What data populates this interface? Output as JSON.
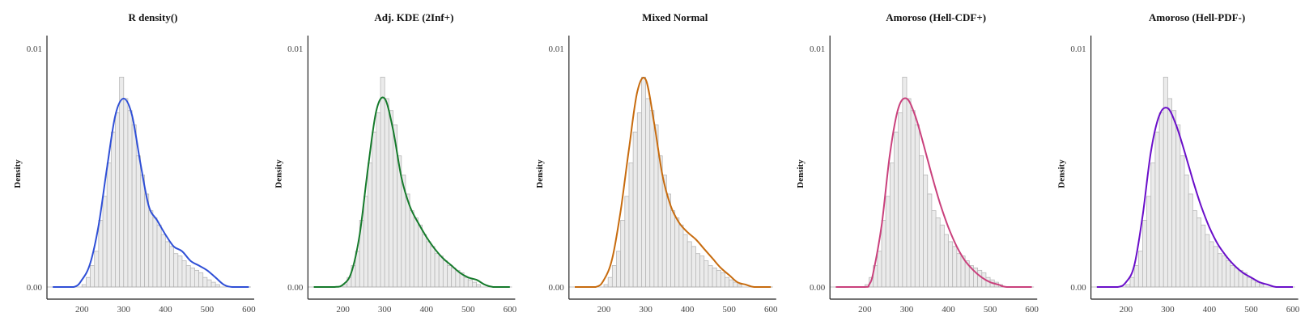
{
  "chart_data": [
    {
      "type": "bar",
      "title": "R density()",
      "ylabel": "Density",
      "xlabel": "",
      "ylim": [
        0,
        0.0105
      ],
      "xlim": [
        120,
        605
      ],
      "x_ticks": [
        "200",
        "300",
        "400",
        "500",
        "600"
      ],
      "y_ticks": [
        "0.00",
        "0.01"
      ],
      "curve_color": "#2f4fd6",
      "bins": [
        [
          200,
          210,
          0.0001
        ],
        [
          210,
          220,
          0.0004
        ],
        [
          220,
          230,
          0.0009
        ],
        [
          230,
          240,
          0.0015
        ],
        [
          240,
          250,
          0.0028
        ],
        [
          250,
          260,
          0.0038
        ],
        [
          260,
          270,
          0.0052
        ],
        [
          270,
          280,
          0.0065
        ],
        [
          280,
          290,
          0.0073
        ],
        [
          290,
          300,
          0.0088
        ],
        [
          300,
          310,
          0.0079
        ],
        [
          310,
          320,
          0.0074
        ],
        [
          320,
          330,
          0.0068
        ],
        [
          330,
          340,
          0.0055
        ],
        [
          340,
          350,
          0.0047
        ],
        [
          350,
          360,
          0.0039
        ],
        [
          360,
          370,
          0.0032
        ],
        [
          370,
          380,
          0.0029
        ],
        [
          380,
          390,
          0.0026
        ],
        [
          390,
          400,
          0.0022
        ],
        [
          400,
          410,
          0.0019
        ],
        [
          410,
          420,
          0.0017
        ],
        [
          420,
          430,
          0.0014
        ],
        [
          430,
          440,
          0.0013
        ],
        [
          440,
          450,
          0.0011
        ],
        [
          450,
          460,
          0.0009
        ],
        [
          460,
          470,
          0.0008
        ],
        [
          470,
          480,
          0.0007
        ],
        [
          480,
          490,
          0.0006
        ],
        [
          490,
          500,
          0.0004
        ],
        [
          500,
          510,
          0.0003
        ],
        [
          510,
          520,
          0.0002
        ],
        [
          520,
          530,
          0.0001
        ]
      ],
      "curve": [
        [
          130,
          0
        ],
        [
          180,
          0
        ],
        [
          200,
          0.0003
        ],
        [
          220,
          0.001
        ],
        [
          240,
          0.0026
        ],
        [
          260,
          0.005
        ],
        [
          280,
          0.0072
        ],
        [
          300,
          0.0079
        ],
        [
          320,
          0.0072
        ],
        [
          340,
          0.0052
        ],
        [
          360,
          0.0034
        ],
        [
          380,
          0.0028
        ],
        [
          400,
          0.0022
        ],
        [
          420,
          0.0017
        ],
        [
          440,
          0.0015
        ],
        [
          460,
          0.0011
        ],
        [
          480,
          0.0009
        ],
        [
          500,
          0.0007
        ],
        [
          520,
          0.0004
        ],
        [
          540,
          0.0001
        ],
        [
          560,
          0
        ],
        [
          600,
          0
        ]
      ]
    },
    {
      "type": "bar",
      "title": "Adj. KDE (2Inf+)",
      "ylabel": "Density",
      "xlabel": "",
      "ylim": [
        0,
        0.0105
      ],
      "xlim": [
        120,
        605
      ],
      "x_ticks": [
        "200",
        "300",
        "400",
        "500",
        "600"
      ],
      "y_ticks": [
        "0.00",
        "0.01"
      ],
      "curve_color": "#157a2b",
      "bins": [
        [
          200,
          210,
          0.0001
        ],
        [
          210,
          220,
          0.0004
        ],
        [
          220,
          230,
          0.0009
        ],
        [
          230,
          240,
          0.0015
        ],
        [
          240,
          250,
          0.0028
        ],
        [
          250,
          260,
          0.0038
        ],
        [
          260,
          270,
          0.0052
        ],
        [
          270,
          280,
          0.0065
        ],
        [
          280,
          290,
          0.0073
        ],
        [
          290,
          300,
          0.0088
        ],
        [
          300,
          310,
          0.0079
        ],
        [
          310,
          320,
          0.0074
        ],
        [
          320,
          330,
          0.0068
        ],
        [
          330,
          340,
          0.0055
        ],
        [
          340,
          350,
          0.0047
        ],
        [
          350,
          360,
          0.0039
        ],
        [
          360,
          370,
          0.0032
        ],
        [
          370,
          380,
          0.0029
        ],
        [
          380,
          390,
          0.0026
        ],
        [
          390,
          400,
          0.0022
        ],
        [
          400,
          410,
          0.0019
        ],
        [
          410,
          420,
          0.0017
        ],
        [
          420,
          430,
          0.0014
        ],
        [
          430,
          440,
          0.0013
        ],
        [
          440,
          450,
          0.0011
        ],
        [
          450,
          460,
          0.0009
        ],
        [
          460,
          470,
          0.0008
        ],
        [
          470,
          480,
          0.0007
        ],
        [
          480,
          490,
          0.0006
        ],
        [
          490,
          500,
          0.0004
        ],
        [
          500,
          510,
          0.0003
        ],
        [
          510,
          520,
          0.0002
        ],
        [
          520,
          530,
          0.0001
        ]
      ],
      "curve": [
        [
          130,
          0
        ],
        [
          180,
          0
        ],
        [
          200,
          0.0001
        ],
        [
          220,
          0.0006
        ],
        [
          240,
          0.0022
        ],
        [
          260,
          0.005
        ],
        [
          280,
          0.0074
        ],
        [
          300,
          0.0079
        ],
        [
          320,
          0.0066
        ],
        [
          340,
          0.0046
        ],
        [
          360,
          0.0034
        ],
        [
          380,
          0.0027
        ],
        [
          400,
          0.0021
        ],
        [
          420,
          0.0016
        ],
        [
          440,
          0.0012
        ],
        [
          460,
          0.0009
        ],
        [
          480,
          0.0006
        ],
        [
          500,
          0.0004
        ],
        [
          520,
          0.0003
        ],
        [
          540,
          0.0001
        ],
        [
          560,
          0
        ],
        [
          600,
          0
        ]
      ]
    },
    {
      "type": "bar",
      "title": "Mixed Normal",
      "ylabel": "Density",
      "xlabel": "",
      "ylim": [
        0,
        0.0105
      ],
      "xlim": [
        120,
        605
      ],
      "x_ticks": [
        "200",
        "300",
        "400",
        "500",
        "600"
      ],
      "y_ticks": [
        "0.00",
        "0.01"
      ],
      "curve_color": "#c76b0e",
      "bins": [
        [
          200,
          210,
          0.0001
        ],
        [
          210,
          220,
          0.0004
        ],
        [
          220,
          230,
          0.0009
        ],
        [
          230,
          240,
          0.0015
        ],
        [
          240,
          250,
          0.0028
        ],
        [
          250,
          260,
          0.0038
        ],
        [
          260,
          270,
          0.0052
        ],
        [
          270,
          280,
          0.0065
        ],
        [
          280,
          290,
          0.0073
        ],
        [
          290,
          300,
          0.0088
        ],
        [
          300,
          310,
          0.0079
        ],
        [
          310,
          320,
          0.0074
        ],
        [
          320,
          330,
          0.0068
        ],
        [
          330,
          340,
          0.0055
        ],
        [
          340,
          350,
          0.0047
        ],
        [
          350,
          360,
          0.0039
        ],
        [
          360,
          370,
          0.0032
        ],
        [
          370,
          380,
          0.0029
        ],
        [
          380,
          390,
          0.0026
        ],
        [
          390,
          400,
          0.0022
        ],
        [
          400,
          410,
          0.0019
        ],
        [
          410,
          420,
          0.0017
        ],
        [
          420,
          430,
          0.0014
        ],
        [
          430,
          440,
          0.0013
        ],
        [
          440,
          450,
          0.0011
        ],
        [
          450,
          460,
          0.0009
        ],
        [
          460,
          470,
          0.0008
        ],
        [
          470,
          480,
          0.0007
        ],
        [
          480,
          490,
          0.0006
        ],
        [
          490,
          500,
          0.0004
        ],
        [
          500,
          510,
          0.0003
        ],
        [
          510,
          520,
          0.0002
        ],
        [
          520,
          530,
          0.0001
        ]
      ],
      "curve": [
        [
          130,
          0
        ],
        [
          180,
          0
        ],
        [
          200,
          0.0003
        ],
        [
          220,
          0.0012
        ],
        [
          240,
          0.0032
        ],
        [
          260,
          0.0058
        ],
        [
          280,
          0.0082
        ],
        [
          300,
          0.0087
        ],
        [
          320,
          0.0069
        ],
        [
          340,
          0.0047
        ],
        [
          360,
          0.0034
        ],
        [
          380,
          0.0027
        ],
        [
          400,
          0.0023
        ],
        [
          420,
          0.002
        ],
        [
          440,
          0.0016
        ],
        [
          460,
          0.0012
        ],
        [
          480,
          0.0008
        ],
        [
          500,
          0.0005
        ],
        [
          520,
          0.0002
        ],
        [
          540,
          0.0001
        ],
        [
          560,
          0
        ],
        [
          600,
          0
        ]
      ]
    },
    {
      "type": "bar",
      "title": "Amoroso (Hell-CDF+)",
      "ylabel": "Density",
      "xlabel": "",
      "ylim": [
        0,
        0.0105
      ],
      "xlim": [
        120,
        605
      ],
      "x_ticks": [
        "200",
        "300",
        "400",
        "500",
        "600"
      ],
      "y_ticks": [
        "0.00",
        "0.01"
      ],
      "curve_color": "#c9407c",
      "bins": [
        [
          200,
          210,
          0.0001
        ],
        [
          210,
          220,
          0.0004
        ],
        [
          220,
          230,
          0.0009
        ],
        [
          230,
          240,
          0.0015
        ],
        [
          240,
          250,
          0.0028
        ],
        [
          250,
          260,
          0.0038
        ],
        [
          260,
          270,
          0.0052
        ],
        [
          270,
          280,
          0.0065
        ],
        [
          280,
          290,
          0.0073
        ],
        [
          290,
          300,
          0.0088
        ],
        [
          300,
          310,
          0.0079
        ],
        [
          310,
          320,
          0.0074
        ],
        [
          320,
          330,
          0.0068
        ],
        [
          330,
          340,
          0.0055
        ],
        [
          340,
          350,
          0.0047
        ],
        [
          350,
          360,
          0.0039
        ],
        [
          360,
          370,
          0.0032
        ],
        [
          370,
          380,
          0.0029
        ],
        [
          380,
          390,
          0.0026
        ],
        [
          390,
          400,
          0.0022
        ],
        [
          400,
          410,
          0.0019
        ],
        [
          410,
          420,
          0.0017
        ],
        [
          420,
          430,
          0.0014
        ],
        [
          430,
          440,
          0.0013
        ],
        [
          440,
          450,
          0.0011
        ],
        [
          450,
          460,
          0.0009
        ],
        [
          460,
          470,
          0.0008
        ],
        [
          470,
          480,
          0.0007
        ],
        [
          480,
          490,
          0.0006
        ],
        [
          490,
          500,
          0.0004
        ],
        [
          500,
          510,
          0.0003
        ],
        [
          510,
          520,
          0.0002
        ],
        [
          520,
          530,
          0.0001
        ]
      ],
      "curve": [
        [
          130,
          0
        ],
        [
          200,
          0
        ],
        [
          210,
          0.0001
        ],
        [
          220,
          0.0006
        ],
        [
          240,
          0.0026
        ],
        [
          260,
          0.0056
        ],
        [
          280,
          0.0075
        ],
        [
          300,
          0.0079
        ],
        [
          320,
          0.0072
        ],
        [
          340,
          0.006
        ],
        [
          360,
          0.0047
        ],
        [
          380,
          0.0035
        ],
        [
          400,
          0.0025
        ],
        [
          420,
          0.0017
        ],
        [
          440,
          0.0011
        ],
        [
          460,
          0.0007
        ],
        [
          480,
          0.0004
        ],
        [
          500,
          0.0002
        ],
        [
          520,
          0.0001
        ],
        [
          540,
          0
        ],
        [
          600,
          0
        ]
      ]
    },
    {
      "type": "bar",
      "title": "Amoroso (Hell-PDF-)",
      "ylabel": "Density",
      "xlabel": "",
      "ylim": [
        0,
        0.0105
      ],
      "xlim": [
        120,
        605
      ],
      "x_ticks": [
        "200",
        "300",
        "400",
        "500",
        "600"
      ],
      "y_ticks": [
        "0.00",
        "0.01"
      ],
      "curve_color": "#6a0fc9",
      "bins": [
        [
          200,
          210,
          0.0001
        ],
        [
          210,
          220,
          0.0004
        ],
        [
          220,
          230,
          0.0009
        ],
        [
          230,
          240,
          0.0015
        ],
        [
          240,
          250,
          0.0028
        ],
        [
          250,
          260,
          0.0038
        ],
        [
          260,
          270,
          0.0052
        ],
        [
          270,
          280,
          0.0065
        ],
        [
          280,
          290,
          0.0073
        ],
        [
          290,
          300,
          0.0088
        ],
        [
          300,
          310,
          0.0079
        ],
        [
          310,
          320,
          0.0074
        ],
        [
          320,
          330,
          0.0068
        ],
        [
          330,
          340,
          0.0055
        ],
        [
          340,
          350,
          0.0047
        ],
        [
          350,
          360,
          0.0039
        ],
        [
          360,
          370,
          0.0032
        ],
        [
          370,
          380,
          0.0029
        ],
        [
          380,
          390,
          0.0026
        ],
        [
          390,
          400,
          0.0022
        ],
        [
          400,
          410,
          0.0019
        ],
        [
          410,
          420,
          0.0017
        ],
        [
          420,
          430,
          0.0014
        ],
        [
          430,
          440,
          0.0013
        ],
        [
          440,
          450,
          0.0011
        ],
        [
          450,
          460,
          0.0009
        ],
        [
          460,
          470,
          0.0008
        ],
        [
          470,
          480,
          0.0007
        ],
        [
          480,
          490,
          0.0006
        ],
        [
          490,
          500,
          0.0004
        ],
        [
          500,
          510,
          0.0003
        ],
        [
          510,
          520,
          0.0002
        ],
        [
          520,
          530,
          0.0001
        ]
      ],
      "curve": [
        [
          130,
          0
        ],
        [
          180,
          0
        ],
        [
          200,
          0.0002
        ],
        [
          220,
          0.0009
        ],
        [
          240,
          0.003
        ],
        [
          260,
          0.0057
        ],
        [
          280,
          0.0072
        ],
        [
          300,
          0.0075
        ],
        [
          320,
          0.0068
        ],
        [
          340,
          0.0057
        ],
        [
          360,
          0.0045
        ],
        [
          380,
          0.0034
        ],
        [
          400,
          0.0025
        ],
        [
          420,
          0.0018
        ],
        [
          440,
          0.0013
        ],
        [
          460,
          0.0009
        ],
        [
          480,
          0.0006
        ],
        [
          500,
          0.0004
        ],
        [
          520,
          0.0002
        ],
        [
          540,
          0.0001
        ],
        [
          560,
          0
        ],
        [
          600,
          0
        ]
      ]
    }
  ]
}
